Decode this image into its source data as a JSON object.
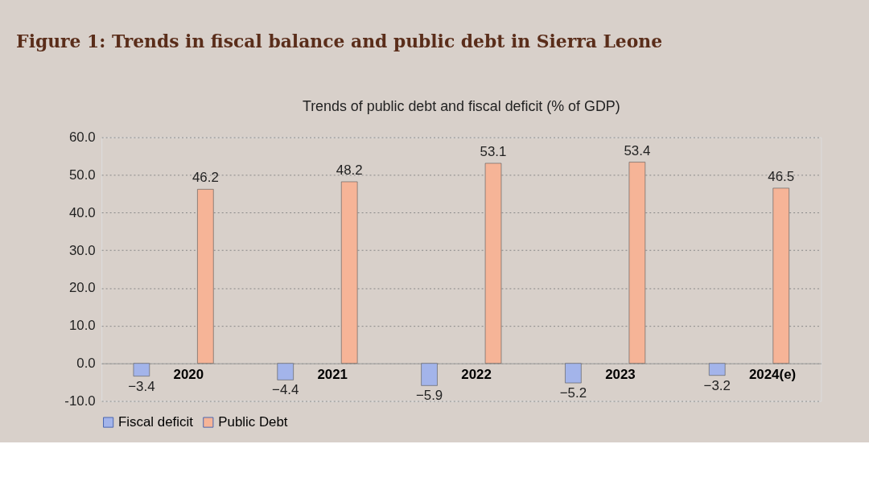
{
  "chart_data": {
    "type": "bar",
    "title": "Figure 1: Trends in fiscal balance and public debt in Sierra Leone",
    "subtitle": "Trends of public debt and fiscal deficit (% of GDP)",
    "categories": [
      "2020",
      "2021",
      "2022",
      "2023",
      "2024(e)"
    ],
    "series": [
      {
        "name": "Fiscal deficit",
        "color": "#a3b4ea",
        "values": [
          -3.4,
          -4.4,
          -5.9,
          -5.2,
          -3.2
        ]
      },
      {
        "name": "Public Debt",
        "color": "#f6b497",
        "values": [
          46.2,
          48.2,
          53.1,
          53.4,
          46.5
        ]
      }
    ],
    "ylim": [
      -10,
      60
    ],
    "yticks": [
      {
        "value": -10,
        "label": "-10.0"
      },
      {
        "value": 0,
        "label": "0.0"
      },
      {
        "value": 10,
        "label": "10.0"
      },
      {
        "value": 20,
        "label": "20.0"
      },
      {
        "value": 30,
        "label": "30.0"
      },
      {
        "value": 40,
        "label": "40.0"
      },
      {
        "value": 50,
        "label": "50.0"
      },
      {
        "value": 60,
        "label": "60.0"
      }
    ],
    "grid": "y",
    "legend": "bottom",
    "data_labels": true
  }
}
